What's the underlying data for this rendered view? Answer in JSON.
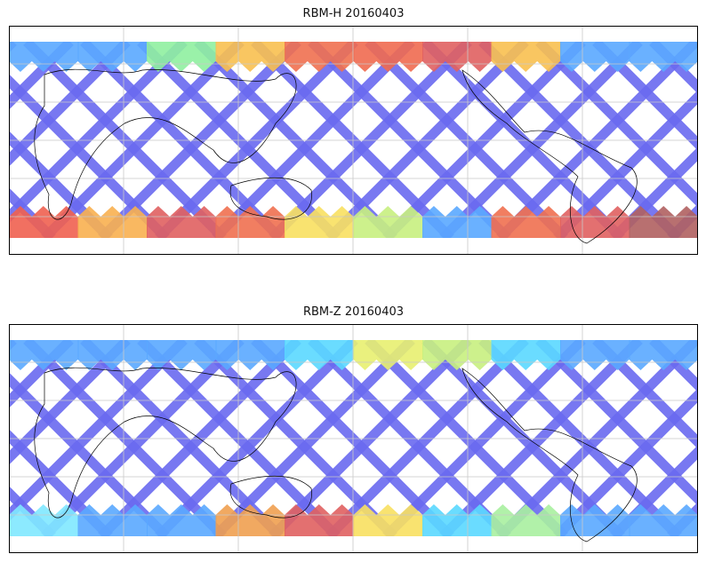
{
  "panels": [
    {
      "title": "RBM-H 20160403",
      "north_band": [
        "#5aa8ff",
        "#5aa8ff",
        "#8ff0a0",
        "#f8c050",
        "#f07050",
        "#f06a50",
        "#e06060",
        "#f8c050",
        "#5aa8ff",
        "#5aa8ff"
      ],
      "south_band": [
        "#f06050",
        "#f8b050",
        "#e06060",
        "#f07050",
        "#f8e060",
        "#c8f080",
        "#5aa8ff",
        "#f07050",
        "#e06060",
        "#b06060"
      ]
    },
    {
      "title": "RBM-Z 20160403",
      "north_band": [
        "#5aa8ff",
        "#5aa8ff",
        "#5aa8ff",
        "#5aa8ff",
        "#5ad8ff",
        "#e8f070",
        "#c8f080",
        "#5ad8ff",
        "#5aa8ff",
        "#5aa8ff"
      ],
      "south_band": [
        "#80e8ff",
        "#5aa8ff",
        "#5aa8ff",
        "#f0a050",
        "#e06060",
        "#f8e060",
        "#5ad8ff",
        "#a8f0a0",
        "#5aa8ff",
        "#5aa8ff"
      ]
    }
  ],
  "colors": {
    "swath": "#6a6af0",
    "grid": "#c8c8c8",
    "frame": "#000000"
  }
}
